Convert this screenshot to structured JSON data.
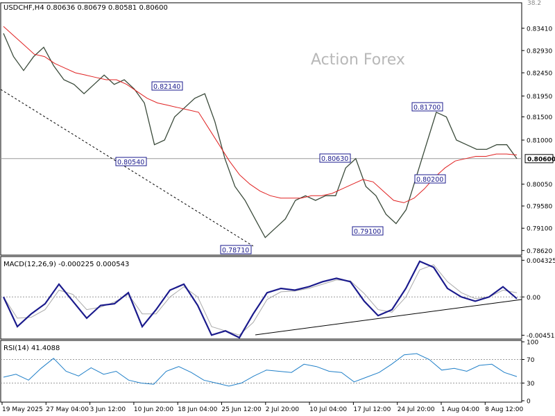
{
  "chart_data": [
    {
      "type": "line",
      "title": "USDCHF,H4  0.80636 0.80679 0.80581 0.80600",
      "watermark": "Action Forex",
      "corner_label": "38.2",
      "ylim": [
        0.7855,
        0.8375
      ],
      "y_ticks": [
        0.8341,
        0.8293,
        0.8245,
        0.8195,
        0.815,
        0.81,
        0.8005,
        0.7958,
        0.791,
        0.7862
      ],
      "y_tick_labels": [
        "0.83410",
        "0.82930",
        "0.82450",
        "0.81950",
        "0.81500",
        "0.81000",
        "0.80050",
        "0.79580",
        "0.79100",
        "0.78620"
      ],
      "current_price": 0.806,
      "current_price_label": "0.80600",
      "x_labels": [
        "19 May 2025",
        "27 May 04:00",
        "3 Jun 12:00",
        "10 Jun 20:00",
        "18 Jun 04:00",
        "25 Jun 12:00",
        "2 Jul 20:00",
        "10 Jul 04:00",
        "17 Jul 12:00",
        "24 Jul 20:00",
        "1 Aug 04:00",
        "8 Aug 12:00"
      ],
      "series": [
        {
          "values": [
            0.833,
            0.828,
            0.825,
            0.828,
            0.83,
            0.826,
            0.823,
            0.822,
            0.82,
            0.822,
            0.824,
            0.822,
            0.823,
            0.821,
            0.818,
            0.809,
            0.81,
            0.815,
            0.817,
            0.819,
            0.82,
            0.814,
            0.806,
            0.8,
            0.797,
            0.793,
            0.789,
            0.791,
            0.793,
            0.797,
            0.798,
            0.797,
            0.798,
            0.798,
            0.804,
            0.806,
            0.8,
            0.798,
            0.794,
            0.792,
            0.795,
            0.802,
            0.809,
            0.816,
            0.815,
            0.81,
            0.809,
            0.808,
            0.808,
            0.809,
            0.809,
            0.806
          ]
        },
        {
          "color": "#e02020",
          "values": [
            0.8345,
            0.8325,
            0.8305,
            0.8285,
            0.828,
            0.8265,
            0.8255,
            0.8245,
            0.824,
            0.8235,
            0.823,
            0.823,
            0.822,
            0.8205,
            0.819,
            0.818,
            0.8175,
            0.817,
            0.8165,
            0.816,
            0.8125,
            0.809,
            0.8055,
            0.8025,
            0.8005,
            0.799,
            0.798,
            0.7975,
            0.7975,
            0.7975,
            0.798,
            0.798,
            0.7985,
            0.7995,
            0.8005,
            0.8015,
            0.801,
            0.799,
            0.797,
            0.7965,
            0.7975,
            0.7995,
            0.802,
            0.804,
            0.8055,
            0.806,
            0.8065,
            0.8065,
            0.807,
            0.807,
            0.8068
          ]
        }
      ],
      "annotations": [
        {
          "label": "0.82140",
          "value": 0.8214
        },
        {
          "label": "0.80540",
          "value": 0.8054
        },
        {
          "label": "0.78710",
          "value": 0.7871
        },
        {
          "label": "0.80630",
          "value": 0.8063
        },
        {
          "label": "0.79100",
          "value": 0.791
        },
        {
          "label": "0.81700",
          "value": 0.817
        },
        {
          "label": "0.80200",
          "value": 0.802
        }
      ]
    },
    {
      "type": "line",
      "title": "MACD(12,26,9) -0.000225 0.000543",
      "ylim": [
        -0.0048,
        0.0046
      ],
      "y_ticks": [
        0.004325,
        0.0,
        -0.004511
      ],
      "y_tick_labels": [
        "0.004325",
        "0.00",
        "-0.004511"
      ],
      "series": [
        {
          "color": "#1a1a8c",
          "values": [
            0.0,
            -0.0035,
            -0.002,
            -0.0008,
            0.0015,
            -0.0005,
            -0.0025,
            -0.001,
            -0.0008,
            0.0005,
            -0.0035,
            -0.0015,
            0.0008,
            0.0015,
            -0.001,
            -0.0045,
            -0.004,
            -0.0048,
            -0.002,
            0.0005,
            0.001,
            0.0008,
            0.0012,
            0.0018,
            0.0022,
            0.0018,
            -0.0005,
            -0.0022,
            -0.0015,
            0.001,
            0.0042,
            0.0035,
            0.001,
            0.0,
            -0.0005,
            0.0,
            0.0012,
            -0.0002
          ]
        },
        {
          "color": "#aaaaaa",
          "values": [
            0.0,
            -0.0025,
            -0.0024,
            -0.0015,
            0.0008,
            0.0003,
            -0.0015,
            -0.0012,
            -0.0006,
            0.0003,
            -0.002,
            -0.002,
            0.0,
            0.0012,
            0.0,
            -0.0035,
            -0.004,
            -0.0045,
            -0.003,
            -0.0003,
            0.0006,
            0.0007,
            0.001,
            0.0015,
            0.002,
            0.0019,
            0.0004,
            -0.0015,
            -0.0018,
            0.0,
            0.0032,
            0.0038,
            0.0018,
            0.0005,
            -0.0002,
            0.0,
            0.0008,
            0.0005
          ]
        }
      ]
    },
    {
      "type": "line",
      "title": "RSI(14) 41.4088",
      "ylim": [
        0,
        100
      ],
      "y_ticks": [
        100,
        70,
        30,
        0
      ],
      "y_tick_labels": [
        "100",
        "70",
        "30",
        "0"
      ],
      "series": [
        {
          "color": "#1f7fc8",
          "values": [
            40,
            45,
            35,
            55,
            72,
            50,
            42,
            56,
            45,
            50,
            35,
            30,
            28,
            50,
            58,
            48,
            35,
            30,
            25,
            30,
            42,
            52,
            50,
            48,
            62,
            58,
            50,
            48,
            32,
            40,
            48,
            62,
            78,
            80,
            70,
            52,
            55,
            50,
            60,
            62,
            48,
            41
          ]
        }
      ]
    }
  ]
}
